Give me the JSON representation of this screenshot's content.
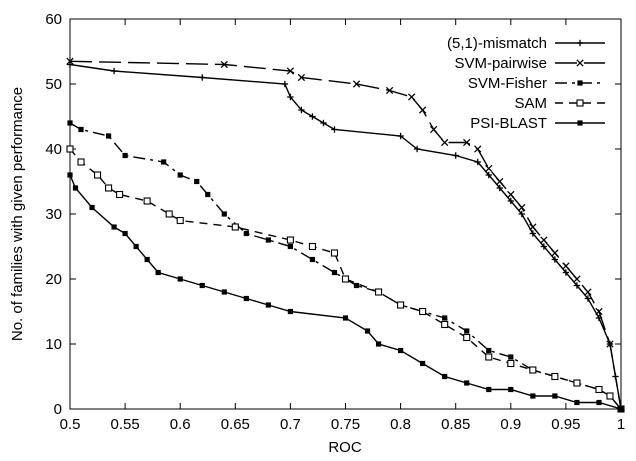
{
  "chart_data": {
    "type": "line",
    "title": "",
    "xlabel": "ROC",
    "ylabel": "No. of families with given performance",
    "xlim": [
      0.5,
      1.0
    ],
    "ylim": [
      0,
      60
    ],
    "xticks": [
      0.5,
      0.55,
      0.6,
      0.65,
      0.7,
      0.75,
      0.8,
      0.85,
      0.9,
      0.95,
      1
    ],
    "xtick_labels": [
      "0.5",
      "0.55",
      "0.6",
      "0.65",
      "0.7",
      "0.75",
      "0.8",
      "0.85",
      "0.9",
      "0.95",
      "1"
    ],
    "yticks": [
      0,
      10,
      20,
      30,
      40,
      50,
      60
    ],
    "ytick_labels": [
      "0",
      "10",
      "20",
      "30",
      "40",
      "50",
      "60"
    ],
    "grid": false,
    "legend_position": "top-right",
    "series": [
      {
        "name": "(5,1)-mismatch",
        "line_style": "solid",
        "marker": "plus",
        "x": [
          0.5,
          0.54,
          0.62,
          0.695,
          0.7,
          0.71,
          0.72,
          0.73,
          0.74,
          0.8,
          0.815,
          0.85,
          0.87,
          0.88,
          0.89,
          0.9,
          0.91,
          0.92,
          0.93,
          0.94,
          0.95,
          0.96,
          0.97,
          0.98,
          0.99,
          0.995,
          1.0
        ],
        "y": [
          53,
          52,
          51,
          50,
          48,
          46,
          45,
          44,
          43,
          42,
          40,
          39,
          38,
          36,
          34,
          32,
          30,
          27,
          25,
          23,
          21,
          19,
          17,
          14,
          10,
          5,
          0
        ]
      },
      {
        "name": "SVM-pairwise",
        "line_style": "long-dash",
        "marker": "x",
        "x": [
          0.5,
          0.64,
          0.7,
          0.71,
          0.76,
          0.79,
          0.81,
          0.82,
          0.83,
          0.84,
          0.86,
          0.87,
          0.88,
          0.89,
          0.9,
          0.91,
          0.92,
          0.93,
          0.94,
          0.95,
          0.96,
          0.97,
          0.98,
          0.99,
          1.0
        ],
        "y": [
          53.5,
          53,
          52,
          51,
          50,
          49,
          48,
          46,
          43,
          41,
          41,
          40,
          37,
          35,
          33,
          31,
          28,
          26,
          24,
          22,
          20,
          18,
          15,
          10,
          0
        ]
      },
      {
        "name": "SVM-Fisher",
        "line_style": "dash-dot",
        "marker": "square-filled",
        "x": [
          0.5,
          0.51,
          0.535,
          0.55,
          0.585,
          0.6,
          0.615,
          0.625,
          0.64,
          0.66,
          0.68,
          0.7,
          0.72,
          0.74,
          0.76,
          0.78,
          0.8,
          0.82,
          0.84,
          0.86,
          0.88,
          0.9,
          0.92,
          0.94,
          0.96,
          0.98,
          0.99,
          1.0
        ],
        "y": [
          44,
          43,
          42,
          39,
          38,
          36,
          35,
          33,
          30,
          27,
          26,
          25,
          23,
          21,
          19,
          18,
          16,
          15,
          14,
          12,
          9,
          8,
          6,
          5,
          4,
          3,
          2,
          0
        ]
      },
      {
        "name": "SAM",
        "line_style": "dashed",
        "marker": "square-open",
        "x": [
          0.5,
          0.51,
          0.525,
          0.535,
          0.545,
          0.57,
          0.59,
          0.6,
          0.65,
          0.7,
          0.72,
          0.74,
          0.75,
          0.78,
          0.8,
          0.82,
          0.84,
          0.86,
          0.88,
          0.9,
          0.92,
          0.94,
          0.96,
          0.98,
          0.99,
          1.0
        ],
        "y": [
          40,
          38,
          36,
          34,
          33,
          32,
          30,
          29,
          28,
          26,
          25,
          24,
          20,
          18,
          16,
          15,
          13,
          11,
          8,
          7,
          6,
          5,
          4,
          3,
          2,
          0
        ]
      },
      {
        "name": "PSI-BLAST",
        "line_style": "solid",
        "marker": "square-filled",
        "x": [
          0.5,
          0.505,
          0.52,
          0.54,
          0.55,
          0.56,
          0.57,
          0.58,
          0.6,
          0.62,
          0.64,
          0.66,
          0.68,
          0.7,
          0.75,
          0.77,
          0.78,
          0.8,
          0.82,
          0.84,
          0.86,
          0.88,
          0.9,
          0.92,
          0.94,
          0.96,
          0.98,
          1.0
        ],
        "y": [
          36,
          34,
          31,
          28,
          27,
          25,
          23,
          21,
          20,
          19,
          18,
          17,
          16,
          15,
          14,
          12,
          10,
          9,
          7,
          5,
          4,
          3,
          3,
          2,
          2,
          1,
          1,
          0
        ]
      }
    ]
  }
}
